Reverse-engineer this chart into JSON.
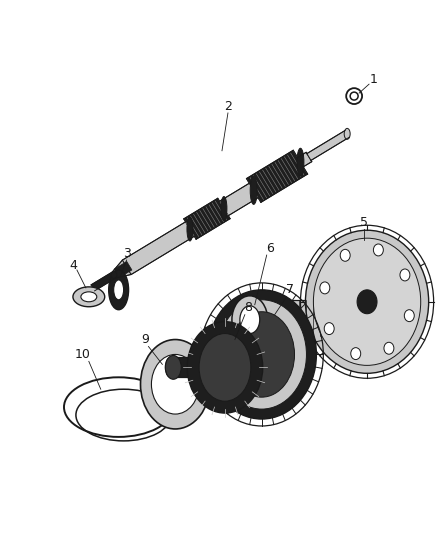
{
  "bg_color": "#ffffff",
  "line_color": "#1a1a1a",
  "dark_fill": "#1e1e1e",
  "dark2_fill": "#3a3a3a",
  "mid_fill": "#666666",
  "light_fill": "#c8c8c8",
  "lighter_fill": "#e0e0e0",
  "shaft_fill": "#d4d4d4",
  "figsize": [
    4.38,
    5.33
  ],
  "dpi": 100
}
